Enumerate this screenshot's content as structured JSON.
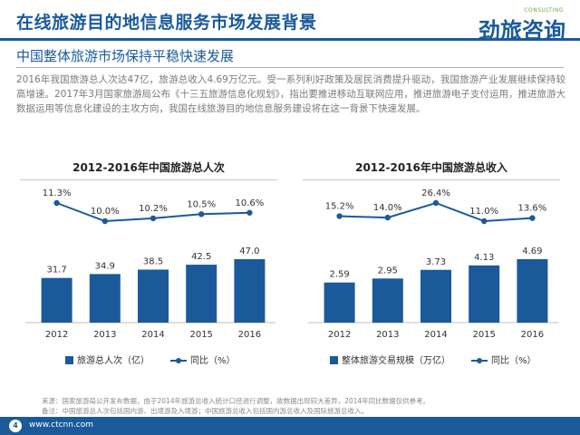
{
  "header": {
    "title": "在线旅游目的地信息服务市场发展背景",
    "logo_text": "劲旅咨询",
    "logo_en": "CONSULTING"
  },
  "subtitle": "中国整体旅游市场保持平稳快速发展",
  "paragraph": "2016年我国旅游总人次达47亿，旅游总收入4.69万亿元。受一系列利好政策及居民消费提升驱动，我国旅游产业发展继续保持较高增速。2017年3月国家旅游局公布《十三五旅游信息化规划》，指出要推进移动互联网应用，推进旅游电子支付运用，推进旅游大数据运用等信息化建设的主攻方向，我国在线旅游目的地信息服务建设将在这一背景下快速发展。",
  "colors": {
    "bar": "#1a5a9a",
    "line": "#1a5a9a",
    "brand": "#1a5a9a"
  },
  "chart_data": [
    {
      "type": "bar",
      "title": "2012-2016年中国旅游总人次",
      "categories": [
        "2012",
        "2013",
        "2014",
        "2015",
        "2016"
      ],
      "series": [
        {
          "name": "旅游总人次（亿）",
          "type": "bar",
          "values": [
            31.7,
            34.9,
            38.5,
            42.5,
            47.0
          ],
          "labels": [
            "31.7",
            "34.9",
            "38.5",
            "42.5",
            "47.0"
          ]
        },
        {
          "name": "同比（%）",
          "type": "line",
          "values": [
            11.3,
            10.0,
            10.2,
            10.5,
            10.6
          ],
          "labels": [
            "11.3%",
            "10.0%",
            "10.2%",
            "10.5%",
            "10.6%"
          ]
        }
      ],
      "legend_position": "bottom"
    },
    {
      "type": "bar",
      "title": "2012-2016年中国旅游总收入",
      "categories": [
        "2012",
        "2013",
        "2014",
        "2015",
        "2016"
      ],
      "series": [
        {
          "name": "整体旅游交易规模（万亿）",
          "type": "bar",
          "values": [
            2.59,
            2.95,
            3.73,
            4.13,
            4.69
          ],
          "labels": [
            "2.59",
            "2.95",
            "3.73",
            "4.13",
            "4.69"
          ]
        },
        {
          "name": "同比（%）",
          "type": "line",
          "values": [
            15.2,
            14.0,
            26.4,
            11.0,
            13.6
          ],
          "labels": [
            "15.2%",
            "14.0%",
            "26.4%",
            "11.0%",
            "13.6%"
          ]
        }
      ],
      "legend_position": "bottom"
    }
  ],
  "source": {
    "line1": "来源：国家旅游局公开发布数据，由于2014年旅游总收入统计口径进行调整，故数据出现较大差异，2014年同比数据仅供参考。",
    "line2": "备注：中国旅游总人次包括国内游、出境游及入境游；中国旅游总收入包括国内游总收入及国际旅游总收入。"
  },
  "footer": {
    "page": "4",
    "url": "www.ctcnn.com"
  }
}
